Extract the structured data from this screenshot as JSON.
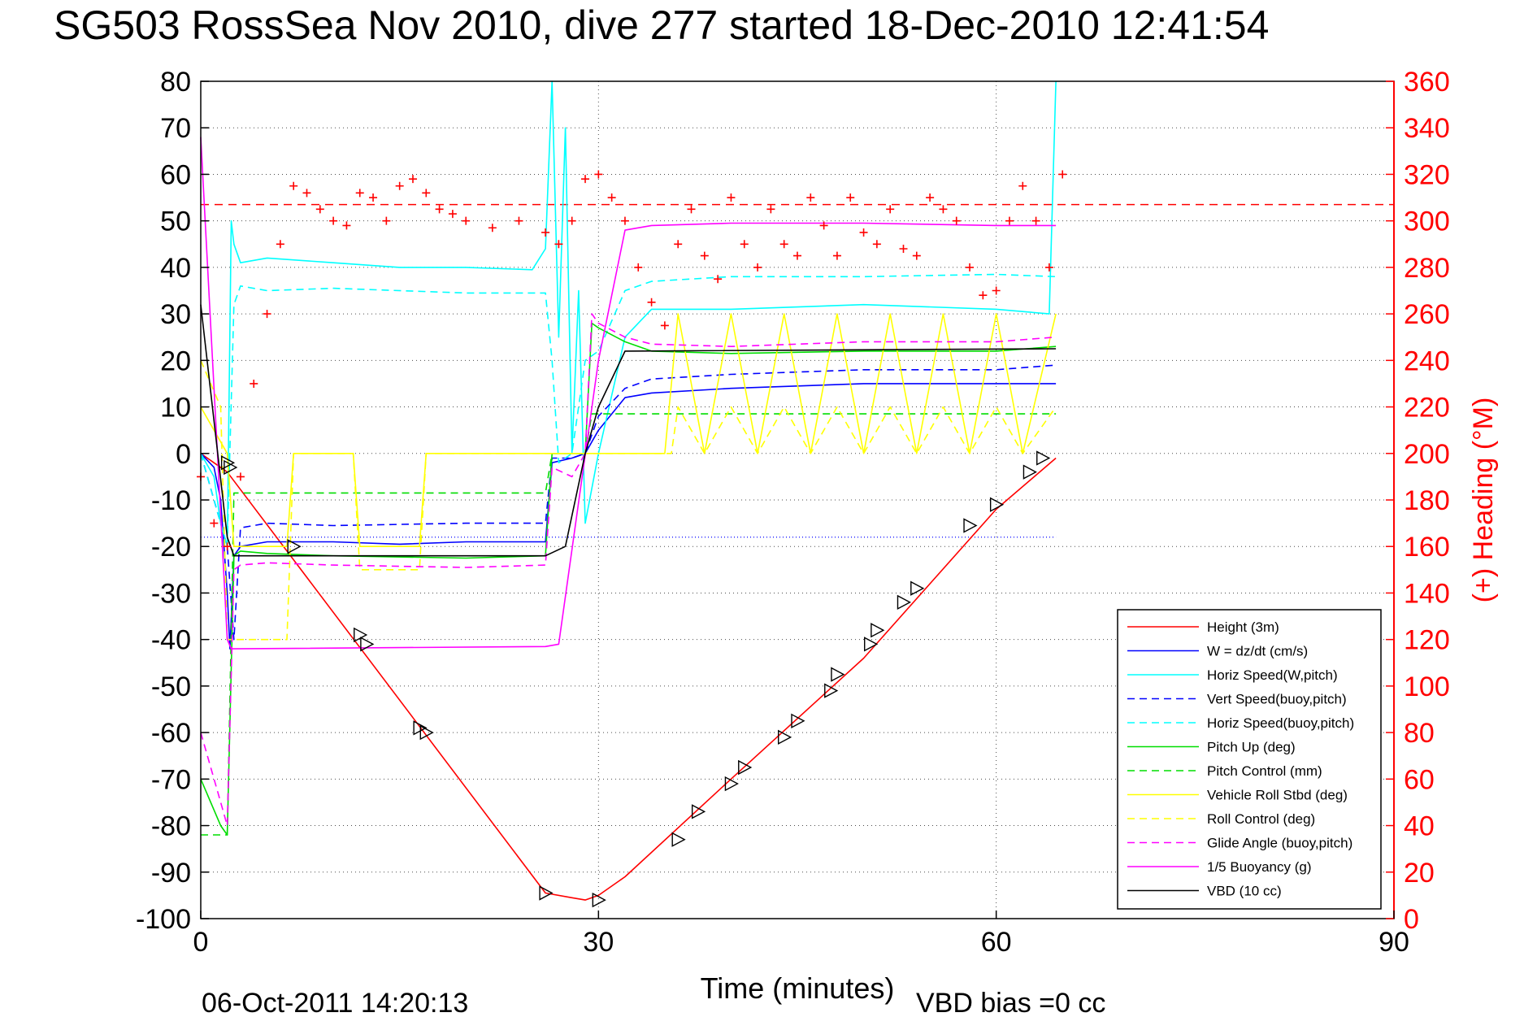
{
  "chart_data": {
    "type": "line",
    "title": "SG503 RossSea Nov 2010, dive 277 started 18-Dec-2010 12:41:54",
    "xlabel": "Time (minutes)",
    "ylabel": "",
    "y2label": "(+) Heading (°M)",
    "footer_timestamp": "06-Oct-2011 14:20:13",
    "footer_note": "VBD bias =0 cc",
    "xlim": [
      0,
      90
    ],
    "ylim": [
      -100,
      80
    ],
    "y2lim": [
      0,
      360
    ],
    "x_ticks": [
      0,
      30,
      60,
      90
    ],
    "y_ticks": [
      -100,
      -90,
      -80,
      -70,
      -60,
      -50,
      -40,
      -30,
      -20,
      -10,
      0,
      10,
      20,
      30,
      40,
      50,
      60,
      70,
      80
    ],
    "y2_ticks": [
      0,
      20,
      40,
      60,
      80,
      100,
      120,
      140,
      160,
      180,
      200,
      220,
      240,
      260,
      280,
      300,
      320,
      340,
      360
    ],
    "grid": true,
    "legend_position": "bottom-right",
    "colors": {
      "left_axis": "#000000",
      "right_axis": "#ff0000"
    },
    "series": [
      {
        "name": "Height (3m)",
        "color": "#ff0000",
        "style": "solid",
        "x": [
          0,
          2,
          26,
          28,
          29,
          30,
          32,
          40,
          50,
          60,
          64.5
        ],
        "y": [
          0,
          -4,
          -94.5,
          -95.5,
          -96,
          -95,
          -91,
          -70,
          -44,
          -12,
          -1
        ]
      },
      {
        "name": "W = dz/dt (cm/s)",
        "color": "#0000ff",
        "style": "solid",
        "x": [
          0,
          1,
          1.5,
          2,
          2.2,
          2.5,
          3,
          5,
          10,
          15,
          20,
          26,
          26.5,
          28,
          29,
          30,
          32,
          34,
          40,
          50,
          60,
          64.5
        ],
        "y": [
          0,
          -3,
          -10,
          -30,
          -42,
          -22,
          -20,
          -19,
          -19,
          -19.5,
          -19,
          -19,
          -2,
          -1,
          0,
          5,
          12,
          13,
          14,
          15,
          15,
          15
        ]
      },
      {
        "name": "Horiz Speed(W,pitch)",
        "color": "#00ffff",
        "style": "solid",
        "x": [
          0,
          1,
          1.5,
          2,
          2.3,
          2.5,
          3,
          5,
          10,
          15,
          20,
          25,
          26,
          26.5,
          27,
          27.5,
          28,
          28.5,
          29,
          30,
          32,
          34,
          40,
          50,
          60,
          64,
          64.5
        ],
        "y": [
          0,
          -5,
          -15,
          -20,
          50,
          45,
          41,
          42,
          41,
          40,
          40,
          39.5,
          44,
          80,
          25,
          70,
          0,
          35,
          -15,
          0,
          25,
          31,
          31,
          32,
          31,
          30,
          80
        ]
      },
      {
        "name": "Vert Speed(buoy,pitch)",
        "color": "#0000ff",
        "style": "dashed",
        "x": [
          0,
          2,
          2.5,
          3,
          5,
          10,
          20,
          26,
          26.5,
          28,
          29,
          30,
          32,
          34,
          40,
          50,
          60,
          64.5
        ],
        "y": [
          0,
          -20,
          -40,
          -16,
          -15,
          -15.5,
          -15,
          -15,
          -1,
          -1,
          0,
          8,
          14,
          16,
          17,
          18,
          18,
          19
        ]
      },
      {
        "name": "Horiz Speed(buoy,pitch)",
        "color": "#00ffff",
        "style": "dashed",
        "x": [
          0,
          2,
          2.5,
          3,
          5,
          10,
          20,
          26,
          26.5,
          27,
          28,
          29,
          30,
          32,
          34,
          40,
          50,
          60,
          64.5
        ],
        "y": [
          0,
          -20,
          32,
          36,
          35,
          35.5,
          34.5,
          34.5,
          20,
          -2,
          0,
          20,
          22,
          35,
          37,
          38,
          38,
          38.5,
          38
        ]
      },
      {
        "name": "Pitch Up (deg)",
        "color": "#00dd00",
        "style": "solid",
        "x": [
          0,
          1.5,
          2,
          2.5,
          3,
          5,
          10,
          20,
          26,
          26.5,
          28,
          29,
          29.5,
          30,
          32,
          34,
          40,
          50,
          60,
          64.5
        ],
        "y": [
          -70,
          -80,
          -82,
          -22,
          -21,
          -21.5,
          -22,
          -22.5,
          -22,
          0,
          0,
          0,
          28,
          27,
          24,
          22,
          21.5,
          22,
          22,
          23
        ]
      },
      {
        "name": "Pitch Control (mm)",
        "color": "#00dd00",
        "style": "dashed",
        "x": [
          0,
          2,
          2.5,
          26,
          26.5,
          29,
          29.5,
          32,
          64.5
        ],
        "y": [
          -82,
          -82,
          -8.5,
          -8.5,
          0,
          0,
          8.5,
          8.5,
          8.5
        ]
      },
      {
        "name": "Vehicle Roll Stbd (deg)",
        "color": "#ffff00",
        "style": "solid",
        "x": [
          0,
          2,
          2.5,
          6.5,
          7,
          11.5,
          12,
          16.5,
          17,
          26,
          26.5,
          29,
          30,
          32,
          35,
          36,
          38,
          40,
          42,
          44,
          46,
          48,
          50,
          52,
          54,
          56,
          58,
          60,
          62,
          64.5
        ],
        "y": [
          10,
          0,
          -20,
          -20,
          0,
          0,
          -20,
          -20,
          0,
          0,
          0,
          0,
          0,
          0,
          0,
          30,
          0,
          30,
          0,
          30,
          0,
          30,
          0,
          30,
          0,
          30,
          0,
          30,
          0,
          30
        ]
      },
      {
        "name": "Roll Control (deg)",
        "color": "#ffff00",
        "style": "dashed",
        "x": [
          0,
          1.5,
          2,
          2.5,
          3.5,
          4,
          6.5,
          7,
          11.5,
          12,
          16.5,
          17,
          26,
          27,
          29,
          30,
          35.5,
          36,
          38,
          40,
          42,
          44,
          46,
          48,
          50,
          52,
          54,
          56,
          58,
          60,
          62,
          64.5
        ],
        "y": [
          20,
          10,
          -40,
          -40,
          -40,
          -40,
          -40,
          0,
          0,
          -25,
          -25,
          0,
          0,
          0,
          0,
          0,
          0,
          10,
          0,
          10,
          0,
          10,
          0,
          10,
          0,
          10,
          0,
          10,
          0,
          10,
          0,
          10
        ]
      },
      {
        "name": "Glide Angle (buoy,pitch)",
        "color": "#ff00ff",
        "style": "dashed",
        "x": [
          0,
          1.5,
          2,
          2.5,
          3,
          5,
          10,
          20,
          26,
          26.5,
          28,
          29,
          29.5,
          30,
          32,
          34,
          40,
          50,
          60,
          64.5
        ],
        "y": [
          -60,
          -75,
          -80,
          -25,
          -24,
          -23.5,
          -24,
          -24.5,
          -24,
          -3,
          -5,
          0,
          30,
          28,
          25,
          23.5,
          23,
          24,
          24,
          25
        ]
      },
      {
        "name": "1/5 Buoyancy (g)",
        "color": "#ff00ff",
        "style": "solid",
        "x": [
          0,
          2,
          2.3,
          2.5,
          26,
          27,
          30,
          32,
          34,
          40,
          50,
          60,
          64.5
        ],
        "y": [
          68,
          -40,
          -42,
          -42,
          -41.5,
          -41,
          20,
          48,
          49,
          49.5,
          49.5,
          49,
          49
        ]
      },
      {
        "name": "VBD (10 cc)",
        "color": "#000000",
        "style": "solid",
        "x": [
          0,
          2,
          2.5,
          26,
          27.5,
          29,
          30,
          32,
          64.5
        ],
        "y": [
          32,
          -18,
          -22,
          -22,
          -20,
          0,
          10,
          22,
          22.5
        ]
      }
    ],
    "heading_series": {
      "marker": "+",
      "color": "#ff0000",
      "x": [
        0,
        1,
        2,
        3,
        4,
        5,
        6,
        7,
        8,
        9,
        10,
        11,
        12,
        13,
        14,
        15,
        16,
        17,
        18,
        19,
        20,
        22,
        24,
        26,
        27,
        28,
        29,
        30,
        31,
        32,
        33,
        34,
        35,
        36,
        37,
        38,
        39,
        40,
        41,
        42,
        43,
        44,
        45,
        46,
        47,
        48,
        49,
        50,
        51,
        52,
        53,
        54,
        55,
        56,
        57,
        58,
        59,
        60,
        61,
        62,
        63,
        64,
        65
      ],
      "y": [
        190,
        170,
        160,
        190,
        230,
        260,
        290,
        315,
        312,
        305,
        300,
        298,
        312,
        310,
        300,
        315,
        318,
        312,
        305,
        303,
        300,
        297,
        300,
        295,
        290,
        300,
        318,
        320,
        310,
        300,
        280,
        265,
        255,
        290,
        305,
        285,
        275,
        310,
        290,
        280,
        305,
        290,
        285,
        310,
        298,
        285,
        310,
        295,
        290,
        305,
        288,
        285,
        310,
        305,
        300,
        280,
        268,
        270,
        300,
        315,
        300,
        280,
        320
      ]
    },
    "heading_reference": {
      "value": 307,
      "style": "dashed",
      "color": "#ff0000"
    },
    "dotted_reference_lines": [
      {
        "value": -18,
        "x_start": 0,
        "x_end": 64.5,
        "color": "#0000ff"
      }
    ],
    "depth_markers": {
      "marker": "triangle",
      "x": [
        2,
        2.2,
        7,
        12,
        12.5,
        16.5,
        17,
        26,
        30,
        36,
        37.5,
        40,
        41,
        44,
        45,
        47.5,
        48,
        50.5,
        51,
        53,
        54,
        58,
        60,
        62.5,
        63.5
      ],
      "y": [
        -2,
        -3,
        -20,
        -39,
        -41,
        -59,
        -60,
        -94.5,
        -96,
        -83,
        -77,
        -71,
        -67.5,
        -61,
        -57.5,
        -51,
        -47.5,
        -41,
        -38,
        -32,
        -29,
        -15.5,
        -11,
        -4,
        -1
      ]
    }
  }
}
